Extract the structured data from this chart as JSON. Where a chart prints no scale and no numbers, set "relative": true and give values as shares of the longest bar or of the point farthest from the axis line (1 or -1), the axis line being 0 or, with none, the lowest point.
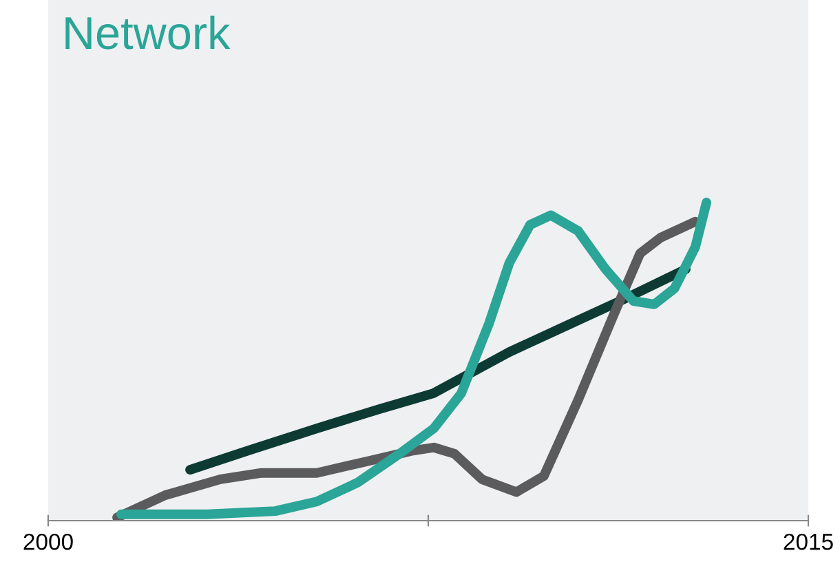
{
  "chart_data": {
    "type": "line",
    "title": "Network",
    "relative": true,
    "xlim": [
      2000,
      2015
    ],
    "xticks": [
      2000,
      {
        "value": 2007.5,
        "label": null
      },
      2015
    ],
    "grid": false,
    "legend": false,
    "line_style": "solid",
    "marker": "none",
    "series": [
      {
        "color": "#0d3b34",
        "x": [
          2002.8,
          2003.94,
          2005.3,
          2006.52,
          2007.6,
          2008.29,
          2009.1,
          2010.19,
          2011.28,
          2012.58
        ],
        "values": [
          0.16,
          0.22,
          0.29,
          0.35,
          0.4,
          0.46,
          0.53,
          0.61,
          0.69,
          0.79
        ]
      },
      {
        "color": "#5b5b5d",
        "x": [
          2001.36,
          2002.31,
          2003.4,
          2004.21,
          2005.3,
          2006.39,
          2007.2,
          2007.61,
          2008.02,
          2008.56,
          2009.24,
          2009.78,
          2010.46,
          2011.14,
          2011.68,
          2012.09,
          2012.77
        ],
        "values": [
          0.01,
          0.08,
          0.13,
          0.15,
          0.15,
          0.19,
          0.22,
          0.23,
          0.21,
          0.13,
          0.09,
          0.14,
          0.38,
          0.64,
          0.84,
          0.89,
          0.94
        ]
      },
      {
        "color": "#2aa597",
        "x": [
          2001.44,
          2003.13,
          2004.48,
          2005.3,
          2006.11,
          2006.93,
          2007.61,
          2008.15,
          2008.7,
          2009.1,
          2009.51,
          2009.92,
          2010.46,
          2011.0,
          2011.55,
          2011.96,
          2012.36,
          2012.77,
          2012.99
        ],
        "values": [
          0.02,
          0.02,
          0.03,
          0.06,
          0.12,
          0.21,
          0.29,
          0.4,
          0.62,
          0.81,
          0.93,
          0.96,
          0.91,
          0.79,
          0.69,
          0.68,
          0.73,
          0.86,
          1
        ]
      }
    ]
  }
}
